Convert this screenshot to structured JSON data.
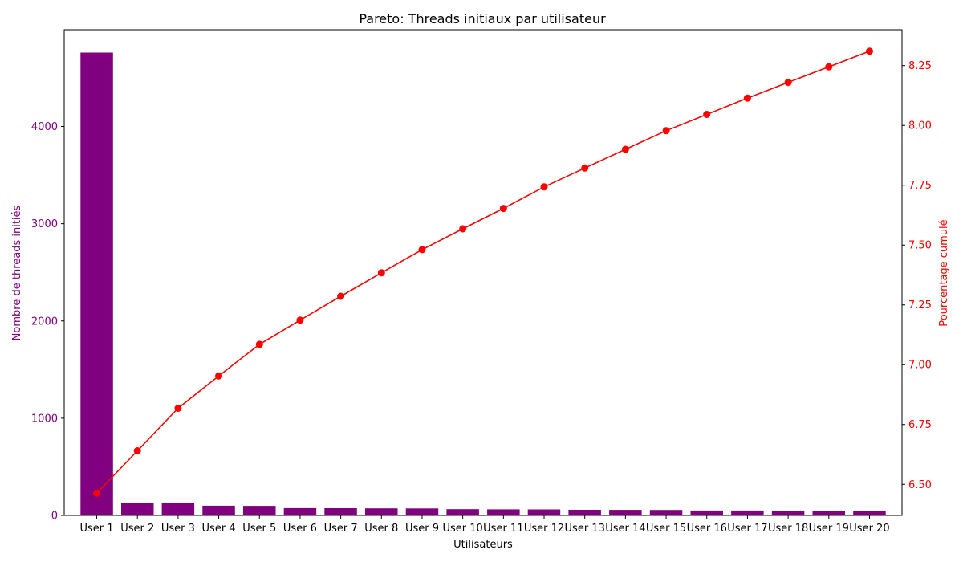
{
  "chart_data": {
    "type": "bar+line",
    "title": "Pareto: Threads initiaux par utilisateur",
    "xlabel": "Utilisateurs",
    "ylabel_left": "Nombre de threads initiés",
    "ylabel_right": "Pourcentage cumulé",
    "categories": [
      "User 1",
      "User 2",
      "User 3",
      "User 4",
      "User 5",
      "User 6",
      "User 7",
      "User 8",
      "User 9",
      "User 10",
      "User 11",
      "User 12",
      "User 13",
      "User 14",
      "User 15",
      "User 16",
      "User 17",
      "User 18",
      "User 19",
      "User 20"
    ],
    "bars": {
      "values": [
        4760,
        130,
        128,
        100,
        98,
        75,
        74,
        73,
        72,
        64,
        63,
        62,
        58,
        57,
        56,
        50,
        50,
        49,
        48,
        48
      ],
      "color": "#800080"
    },
    "line": {
      "values": [
        6.463,
        6.64,
        6.818,
        6.953,
        7.085,
        7.186,
        7.286,
        7.384,
        7.481,
        7.568,
        7.653,
        7.743,
        7.822,
        7.9,
        7.978,
        8.046,
        8.114,
        8.18,
        8.245,
        8.31
      ],
      "color": "#ff0000"
    },
    "ylim_left": [
      0,
      4995
    ],
    "yticks_left": [
      "0",
      "1000",
      "2000",
      "3000",
      "4000"
    ],
    "ylim_right": [
      6.37,
      8.4
    ],
    "yticks_right": [
      "6.50",
      "6.75",
      "7.00",
      "7.25",
      "7.50",
      "7.75",
      "8.00",
      "8.25"
    ],
    "left_axis_color": "#800080",
    "right_axis_color": "#ff0000",
    "grid": false
  }
}
